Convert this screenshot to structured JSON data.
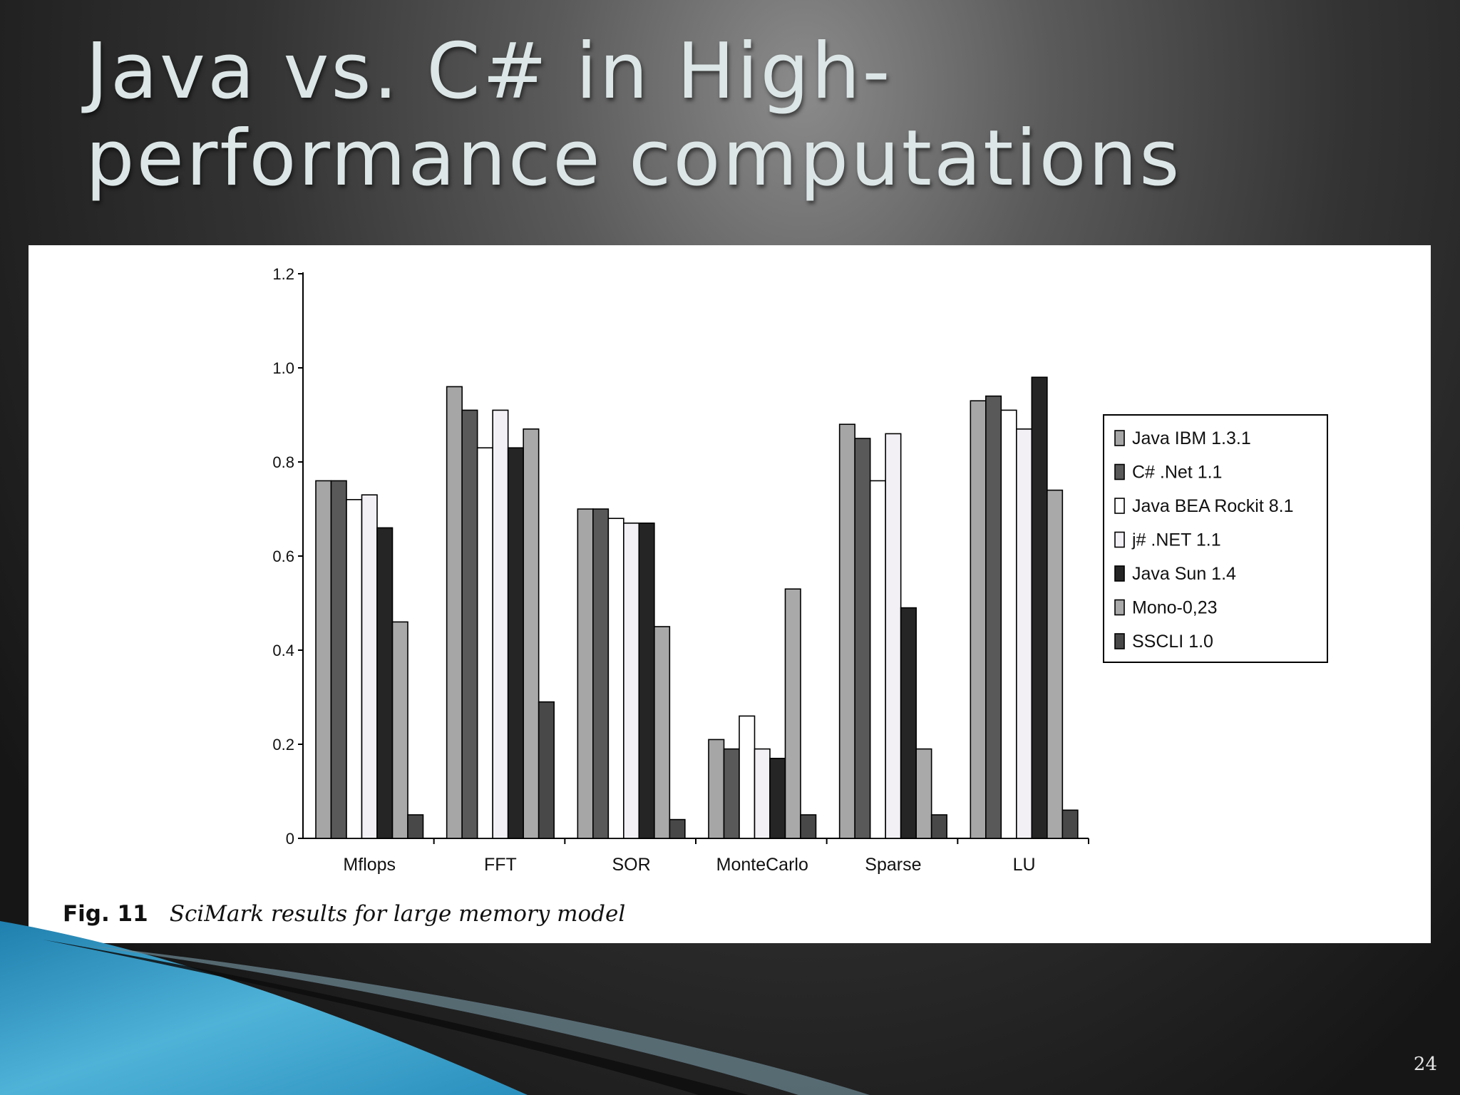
{
  "slide": {
    "title_line1": "Java vs. C# in High-",
    "title_line2": "performance computations",
    "page_number": "24"
  },
  "figure": {
    "label": "Fig. 11",
    "caption": "SciMark results for large memory model"
  },
  "chart_data": {
    "type": "bar",
    "title": "",
    "xlabel": "",
    "ylabel": "",
    "ylim": [
      0,
      1.2
    ],
    "yticks": [
      "0",
      "0.2",
      "0.4",
      "0.6",
      "0.8",
      "1.0",
      "1.2"
    ],
    "grid": false,
    "legend_placement": "right",
    "categories": [
      "Mflops",
      "FFT",
      "SOR",
      "MonteCarlo",
      "Sparse",
      "LU"
    ],
    "series": [
      {
        "name": "Java IBM 1.3.1",
        "color": "#a6a6a6",
        "values": [
          0.76,
          0.96,
          0.7,
          0.21,
          0.88,
          0.93
        ]
      },
      {
        "name": "C# .Net 1.1",
        "color": "#595959",
        "values": [
          0.76,
          0.91,
          0.7,
          0.19,
          0.85,
          0.94
        ]
      },
      {
        "name": "Java BEA Rockit 8.1",
        "color": "#ffffff",
        "values": [
          0.72,
          0.83,
          0.68,
          0.26,
          0.76,
          0.91
        ]
      },
      {
        "name": "j# .NET 1.1",
        "color": "#f2f0f5",
        "values": [
          0.73,
          0.91,
          0.67,
          0.19,
          0.86,
          0.87
        ]
      },
      {
        "name": "Java Sun 1.4",
        "color": "#252525",
        "values": [
          0.66,
          0.83,
          0.67,
          0.17,
          0.49,
          0.98
        ]
      },
      {
        "name": "Mono-0,23",
        "color": "#a9a9a9",
        "values": [
          0.46,
          0.87,
          0.45,
          0.53,
          0.19,
          0.74
        ]
      },
      {
        "name": "SSCLI 1.0",
        "color": "#484848",
        "values": [
          0.05,
          0.29,
          0.04,
          0.05,
          0.05,
          0.06
        ]
      }
    ]
  }
}
